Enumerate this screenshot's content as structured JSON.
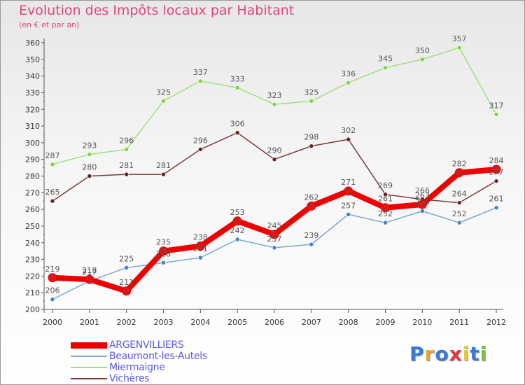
{
  "title": "Evolution des Impôts locaux par Habitant",
  "subtitle": "(en € et par an)",
  "logo": {
    "text": "Proxiti",
    "colors": [
      "#3a7bd5",
      "#e8a33d",
      "#3a7bd5",
      "#e23b3b",
      "#e8c93d",
      "#3a7bd5",
      "#7cc242"
    ]
  },
  "chart_data": {
    "type": "line",
    "x": [
      "2000",
      "2001",
      "2002",
      "2003",
      "2004",
      "2005",
      "2006",
      "2007",
      "2008",
      "2009",
      "2010",
      "2011",
      "2012"
    ],
    "ylim": [
      200,
      360
    ],
    "yticks": [
      200,
      210,
      220,
      230,
      240,
      250,
      260,
      270,
      280,
      290,
      300,
      310,
      320,
      330,
      340,
      350,
      360
    ],
    "grid": false,
    "legend_position": "bottom-left",
    "series": [
      {
        "name": "ARGENVILLIERS",
        "color": "#ee0000",
        "marker": "#d61a1a",
        "width": 8,
        "values": [
          219,
          218,
          211,
          235,
          238,
          253,
          245,
          262,
          271,
          261,
          263,
          282,
          284
        ],
        "labels": [
          "219",
          "218",
          "211",
          "235",
          "238",
          "253",
          "245",
          "262",
          "271",
          "261",
          "263",
          "282",
          "284"
        ]
      },
      {
        "name": "Beaumont-les-Autels",
        "color": "#7ba7d6",
        "marker": "#3f84c8",
        "width": 1.5,
        "values": [
          206,
          217,
          225,
          228,
          231,
          242,
          237,
          239,
          257,
          252,
          259,
          252,
          261
        ],
        "labels": [
          "206",
          "217",
          "225",
          "228",
          "231",
          "242",
          "237",
          "239",
          "257",
          "252",
          "259",
          "252",
          "261"
        ]
      },
      {
        "name": "Miermaigne",
        "color": "#9ee07a",
        "marker": "#7cd445",
        "width": 1.5,
        "values": [
          287,
          293,
          296,
          325,
          337,
          333,
          323,
          325,
          336,
          345,
          350,
          357,
          317
        ],
        "labels": [
          "287",
          "293",
          "296",
          "325",
          "337",
          "333",
          "323",
          "325",
          "336",
          "345",
          "350",
          "357",
          "317"
        ]
      },
      {
        "name": "Vichères",
        "color": "#7a3b3b",
        "marker": "#6b1f1f",
        "width": 1.5,
        "values": [
          265,
          280,
          281,
          281,
          296,
          306,
          290,
          298,
          302,
          269,
          266,
          264,
          277
        ],
        "labels": [
          "265",
          "280",
          "281",
          "281",
          "296",
          "306",
          "290",
          "298",
          "302",
          "269",
          "266",
          "264",
          "277"
        ]
      }
    ]
  }
}
